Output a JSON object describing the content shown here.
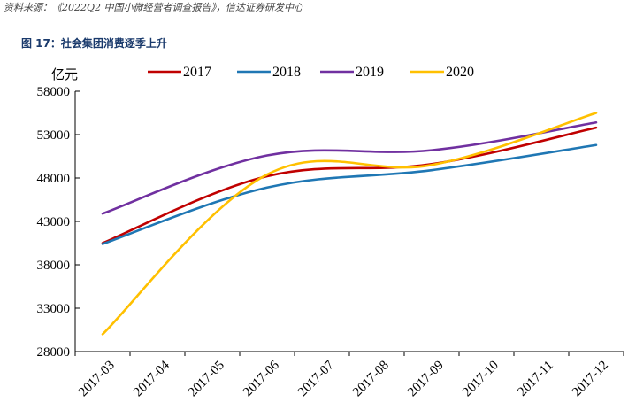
{
  "source_note": "资料来源：《2022Q2 中国小微经营者调查报告》，信达证券研发中心",
  "figure_title": "图 17：社会集团消费逐季上升",
  "chart_data": {
    "type": "line",
    "title": "",
    "xlabel": "",
    "ylabel": "亿元",
    "categories": [
      "2017-03",
      "2017-04",
      "2017-05",
      "2017-06",
      "2017-07",
      "2017-08",
      "2017-09",
      "2017-10",
      "2017-11",
      "2017-12"
    ],
    "ylim": [
      28000,
      58000
    ],
    "yticks": [
      28000,
      33000,
      38000,
      43000,
      48000,
      53000,
      58000
    ],
    "grid": false,
    "legend": "top",
    "series": [
      {
        "name": "2017",
        "color": "#c00000",
        "points": [
          [
            0,
            40500
          ],
          [
            3,
            48200
          ],
          [
            6,
            49600
          ],
          [
            9,
            53800
          ]
        ]
      },
      {
        "name": "2018",
        "color": "#1f77b4",
        "points": [
          [
            0,
            40400
          ],
          [
            3,
            46900
          ],
          [
            6,
            48900
          ],
          [
            9,
            51800
          ]
        ]
      },
      {
        "name": "2019",
        "color": "#7030a0",
        "points": [
          [
            0,
            43900
          ],
          [
            3,
            50600
          ],
          [
            6,
            51200
          ],
          [
            9,
            54400
          ]
        ]
      },
      {
        "name": "2020",
        "color": "#ffc000",
        "points": [
          [
            0,
            30000
          ],
          [
            3,
            48400
          ],
          [
            6,
            49500
          ],
          [
            9,
            55500
          ]
        ]
      }
    ]
  }
}
